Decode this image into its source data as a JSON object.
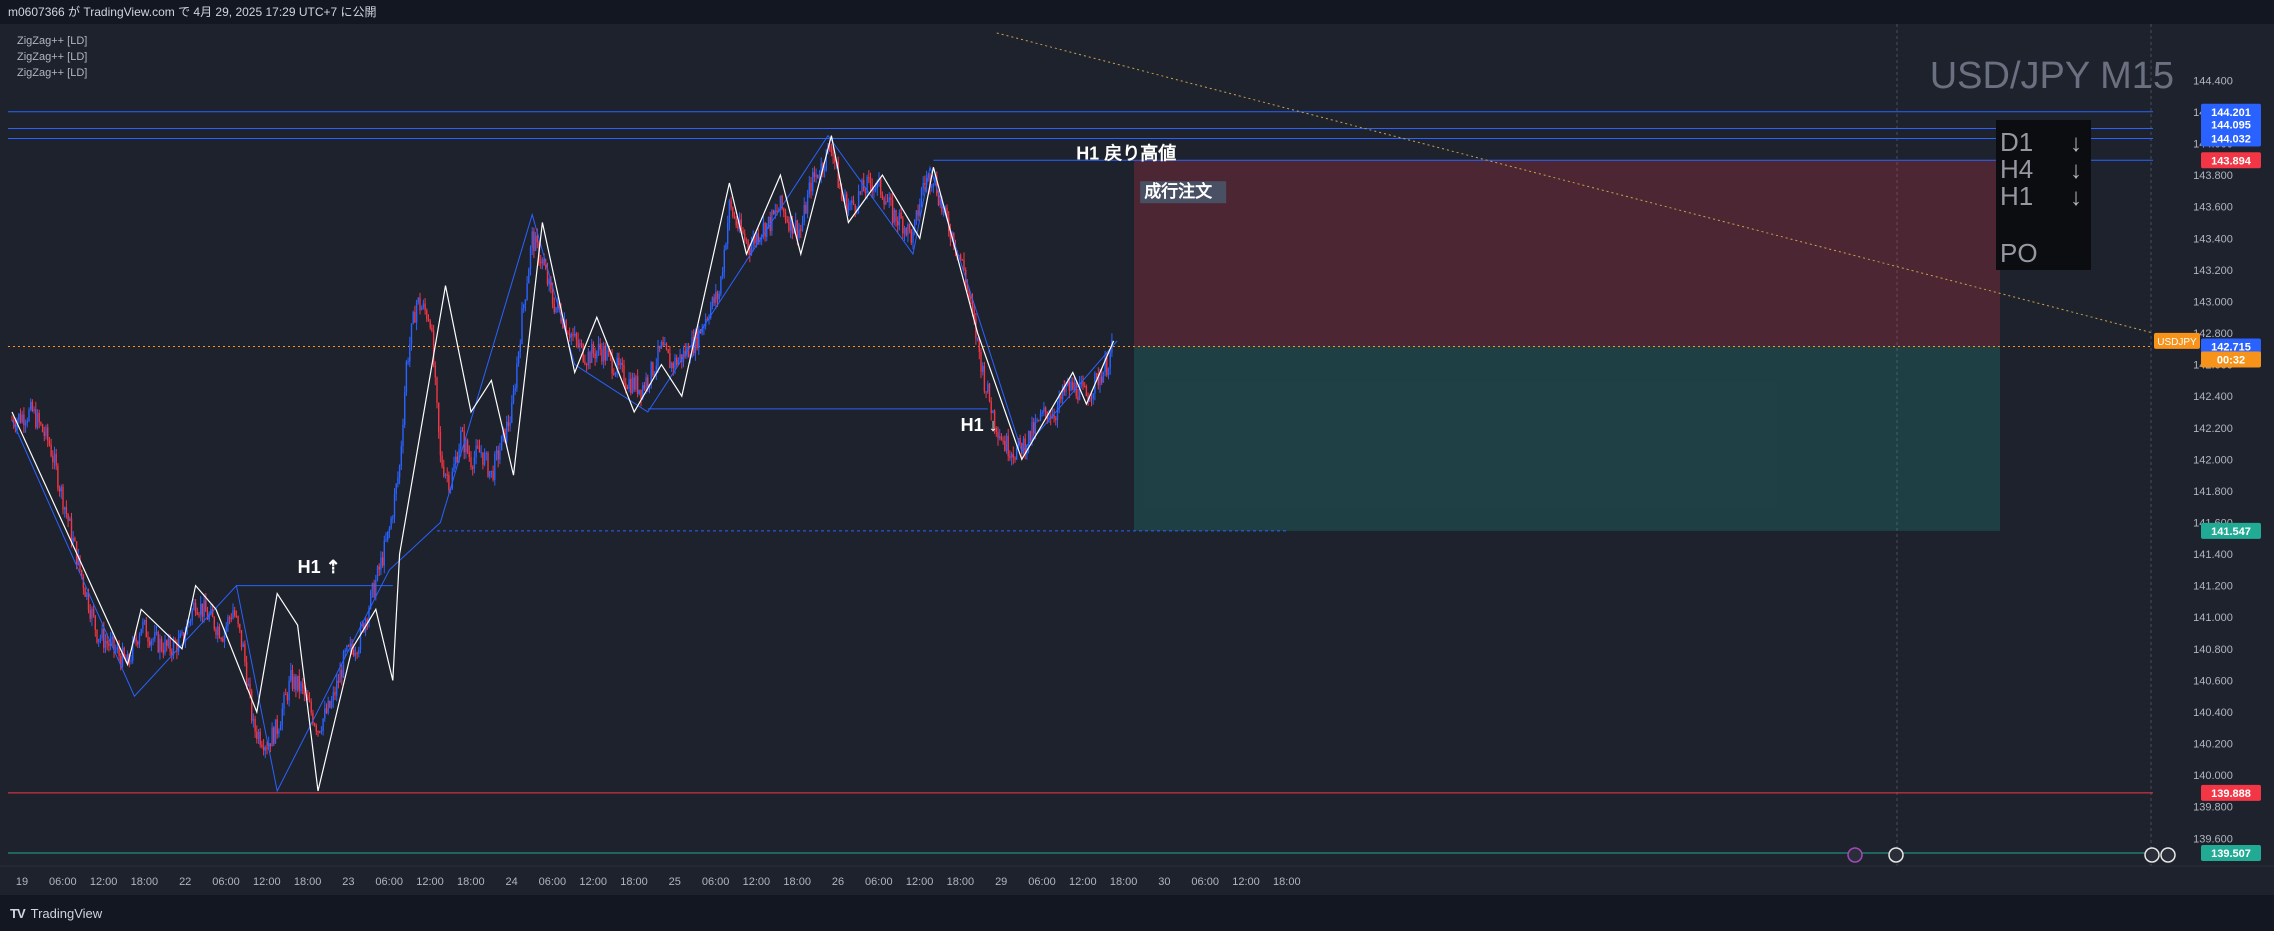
{
  "header": {
    "published": "m0607366 が TradingView.com で 4月 29, 2025 17:29 UTC+7 に公開"
  },
  "indicators": [
    "ZigZag++ [LD]",
    "ZigZag++ [LD]",
    "ZigZag++ [LD]"
  ],
  "footer": {
    "brand": "TradingView",
    "logo": "TV"
  },
  "colors": {
    "background": "#1e222d",
    "bull": "#2962ff",
    "bear": "#f23645",
    "zigzag_white": "#ffffff",
    "zigzag_blue": "#2962ff",
    "trendline": "#c8a24a",
    "last_price": "#f7931a"
  },
  "chart_data": {
    "type": "line",
    "title": "USD/JPY M15",
    "series_name": "USDJPY",
    "ylim": [
      139.45,
      144.7
    ],
    "price_axis_ticks": [
      "144.400",
      "144.200",
      "144.000",
      "143.800",
      "143.600",
      "143.400",
      "143.200",
      "143.000",
      "142.800",
      "142.600",
      "142.400",
      "142.200",
      "142.000",
      "141.800",
      "141.600",
      "141.400",
      "141.200",
      "141.000",
      "140.800",
      "140.600",
      "140.400",
      "140.200",
      "140.000",
      "139.800",
      "139.600"
    ],
    "time_axis_labels": [
      {
        "i": 0,
        "label": "19"
      },
      {
        "i": 24,
        "label": "06:00"
      },
      {
        "i": 48,
        "label": "12:00"
      },
      {
        "i": 72,
        "label": "18:00"
      },
      {
        "i": 96,
        "label": "22"
      },
      {
        "i": 120,
        "label": "06:00"
      },
      {
        "i": 144,
        "label": "12:00"
      },
      {
        "i": 168,
        "label": "18:00"
      },
      {
        "i": 192,
        "label": "23"
      },
      {
        "i": 216,
        "label": "06:00"
      },
      {
        "i": 240,
        "label": "12:00"
      },
      {
        "i": 264,
        "label": "18:00"
      },
      {
        "i": 288,
        "label": "24"
      },
      {
        "i": 312,
        "label": "06:00"
      },
      {
        "i": 336,
        "label": "12:00"
      },
      {
        "i": 360,
        "label": "18:00"
      },
      {
        "i": 384,
        "label": "25"
      },
      {
        "i": 408,
        "label": "06:00"
      },
      {
        "i": 432,
        "label": "12:00"
      },
      {
        "i": 456,
        "label": "18:00"
      },
      {
        "i": 480,
        "label": "26"
      },
      {
        "i": 504,
        "label": "06:00"
      },
      {
        "i": 528,
        "label": "12:00"
      },
      {
        "i": 552,
        "label": "18:00"
      },
      {
        "i": 576,
        "label": "29"
      },
      {
        "i": 600,
        "label": "06:00"
      },
      {
        "i": 624,
        "label": "12:00"
      },
      {
        "i": 648,
        "label": "18:00"
      },
      {
        "i": 672,
        "label": "30"
      },
      {
        "i": 696,
        "label": "06:00"
      },
      {
        "i": 720,
        "label": "12:00"
      },
      {
        "i": 744,
        "label": "18:00"
      }
    ],
    "zigzag_white_pivots": [
      [
        0,
        142.3
      ],
      [
        68,
        140.7
      ],
      [
        76,
        141.05
      ],
      [
        100,
        140.8
      ],
      [
        108,
        141.2
      ],
      [
        120,
        141.05
      ],
      [
        144,
        140.4
      ],
      [
        156,
        141.15
      ],
      [
        168,
        140.95
      ],
      [
        180,
        139.9
      ],
      [
        200,
        140.8
      ],
      [
        214,
        141.05
      ],
      [
        224,
        140.6
      ],
      [
        228,
        141.4
      ],
      [
        255,
        143.1
      ],
      [
        270,
        142.3
      ],
      [
        282,
        142.5
      ],
      [
        295,
        141.9
      ],
      [
        312,
        143.5
      ],
      [
        331,
        142.55
      ],
      [
        344,
        142.9
      ],
      [
        366,
        142.3
      ],
      [
        382,
        142.6
      ],
      [
        394,
        142.4
      ],
      [
        422,
        143.75
      ],
      [
        432,
        143.3
      ],
      [
        452,
        143.8
      ],
      [
        464,
        143.3
      ],
      [
        482,
        144.05
      ],
      [
        492,
        143.5
      ],
      [
        512,
        143.8
      ],
      [
        534,
        143.4
      ],
      [
        542,
        143.85
      ],
      [
        568,
        142.8
      ],
      [
        594,
        142.0
      ],
      [
        624,
        142.55
      ],
      [
        632,
        142.35
      ],
      [
        648,
        142.75
      ]
    ],
    "zigzag_blue_pivots": [
      [
        0,
        142.25
      ],
      [
        72,
        140.5
      ],
      [
        132,
        141.2
      ],
      [
        156,
        139.9
      ],
      [
        222,
        141.3
      ],
      [
        252,
        141.6
      ],
      [
        306,
        143.55
      ],
      [
        331,
        142.6
      ],
      [
        374,
        142.3
      ],
      [
        480,
        144.05
      ],
      [
        530,
        143.3
      ],
      [
        540,
        143.85
      ],
      [
        594,
        142.05
      ],
      [
        650,
        142.75
      ]
    ],
    "candle_path_points": [
      [
        0,
        142.25
      ],
      [
        12,
        142.3
      ],
      [
        22,
        142.1
      ],
      [
        30,
        141.75
      ],
      [
        40,
        141.3
      ],
      [
        50,
        140.9
      ],
      [
        60,
        140.8
      ],
      [
        68,
        140.7
      ],
      [
        76,
        140.95
      ],
      [
        84,
        140.85
      ],
      [
        92,
        140.8
      ],
      [
        100,
        140.85
      ],
      [
        108,
        141.1
      ],
      [
        116,
        141.0
      ],
      [
        124,
        140.9
      ],
      [
        130,
        141.05
      ],
      [
        136,
        140.8
      ],
      [
        142,
        140.3
      ],
      [
        150,
        140.2
      ],
      [
        156,
        140.3
      ],
      [
        164,
        140.6
      ],
      [
        170,
        140.55
      ],
      [
        180,
        140.3
      ],
      [
        188,
        140.45
      ],
      [
        196,
        140.75
      ],
      [
        204,
        140.85
      ],
      [
        212,
        141.15
      ],
      [
        216,
        141.3
      ],
      [
        222,
        141.55
      ],
      [
        228,
        141.95
      ],
      [
        232,
        142.6
      ],
      [
        238,
        143.0
      ],
      [
        246,
        142.9
      ],
      [
        252,
        142.0
      ],
      [
        258,
        141.85
      ],
      [
        264,
        142.15
      ],
      [
        270,
        142.0
      ],
      [
        276,
        142.05
      ],
      [
        282,
        141.9
      ],
      [
        288,
        142.1
      ],
      [
        294,
        142.3
      ],
      [
        300,
        142.9
      ],
      [
        306,
        143.4
      ],
      [
        312,
        143.25
      ],
      [
        318,
        143.0
      ],
      [
        324,
        142.9
      ],
      [
        331,
        142.75
      ],
      [
        338,
        142.65
      ],
      [
        346,
        142.7
      ],
      [
        354,
        142.6
      ],
      [
        362,
        142.5
      ],
      [
        370,
        142.45
      ],
      [
        376,
        142.55
      ],
      [
        382,
        142.7
      ],
      [
        388,
        142.6
      ],
      [
        394,
        142.65
      ],
      [
        402,
        142.75
      ],
      [
        410,
        142.95
      ],
      [
        416,
        143.05
      ],
      [
        422,
        143.6
      ],
      [
        428,
        143.45
      ],
      [
        434,
        143.35
      ],
      [
        440,
        143.45
      ],
      [
        446,
        143.5
      ],
      [
        452,
        143.6
      ],
      [
        458,
        143.5
      ],
      [
        464,
        143.45
      ],
      [
        470,
        143.75
      ],
      [
        476,
        143.85
      ],
      [
        482,
        144.0
      ],
      [
        488,
        143.65
      ],
      [
        494,
        143.6
      ],
      [
        500,
        143.7
      ],
      [
        506,
        143.75
      ],
      [
        512,
        143.7
      ],
      [
        518,
        143.55
      ],
      [
        524,
        143.5
      ],
      [
        530,
        143.4
      ],
      [
        536,
        143.75
      ],
      [
        542,
        143.8
      ],
      [
        548,
        143.55
      ],
      [
        554,
        143.4
      ],
      [
        560,
        143.2
      ],
      [
        566,
        142.85
      ],
      [
        572,
        142.5
      ],
      [
        578,
        142.25
      ],
      [
        584,
        142.1
      ],
      [
        590,
        142.05
      ],
      [
        596,
        142.1
      ],
      [
        602,
        142.2
      ],
      [
        608,
        142.3
      ],
      [
        614,
        142.3
      ],
      [
        620,
        142.45
      ],
      [
        626,
        142.45
      ],
      [
        632,
        142.4
      ],
      [
        638,
        142.5
      ],
      [
        644,
        142.6
      ],
      [
        648,
        142.72
      ]
    ],
    "horizontal_lines": [
      {
        "price": 144.201,
        "color": "#2962ff",
        "style": "solid"
      },
      {
        "price": 144.095,
        "color": "#2962ff",
        "style": "solid"
      },
      {
        "price": 144.032,
        "color": "#2962ff",
        "style": "solid"
      },
      {
        "price": 143.894,
        "color": "#2962ff",
        "style": "solid",
        "from_i": 542
      },
      {
        "price": 142.32,
        "color": "#2962ff",
        "style": "solid",
        "from_i": 374,
        "to_i": 574
      },
      {
        "price": 141.2,
        "color": "#2962ff",
        "style": "solid",
        "from_i": 132,
        "to_i": 224
      },
      {
        "price": 141.547,
        "color": "#2962ff",
        "style": "dotted",
        "from_i": 250,
        "to_i": 750
      },
      {
        "price": 139.888,
        "color": "#f23645",
        "style": "solid"
      },
      {
        "price": 139.507,
        "color": "#22ab94",
        "style": "solid"
      }
    ],
    "trendline": {
      "from": [
        344,
        144.7
      ],
      "to": [
        770,
        142.8
      ]
    },
    "position": {
      "entry": 142.715,
      "stop": 143.894,
      "target": 141.547,
      "from_i": 650,
      "to_i": 700
    },
    "price_labels": [
      {
        "price": 144.201,
        "text": "144.201",
        "color": "#2962ff"
      },
      {
        "price": 144.095,
        "text": "144.095",
        "color": "#2962ff"
      },
      {
        "price": 144.032,
        "text": "144.032",
        "color": "#2962ff"
      },
      {
        "price": 143.894,
        "text": "143.894",
        "color": "#f23645"
      },
      {
        "price": 142.715,
        "text": "142.715",
        "color": "#2962ff"
      },
      {
        "price": 142.62,
        "text": "00:32",
        "color": "#f7931a"
      },
      {
        "price": 141.547,
        "text": "141.547",
        "color": "#22ab94"
      },
      {
        "price": 139.888,
        "text": "139.888",
        "color": "#f23645"
      },
      {
        "price": 139.507,
        "text": "139.507",
        "color": "#22ab94"
      }
    ],
    "symbol_tag": "USDJPY",
    "annotations": [
      {
        "text": "H1 戻り高値",
        "i": 626,
        "price": 143.9
      },
      {
        "text": "成行注文",
        "i": 666,
        "price": 143.66
      },
      {
        "text": "H1 ↓",
        "i": 558,
        "price": 142.18
      },
      {
        "text": "H1 ⇡",
        "i": 168,
        "price": 141.28
      }
    ],
    "trend_table": {
      "rows": [
        {
          "tf": "D1",
          "dir": "↓"
        },
        {
          "tf": "H4",
          "dir": "↓"
        },
        {
          "tf": "H1",
          "dir": "↓"
        }
      ],
      "note": "PO"
    }
  }
}
